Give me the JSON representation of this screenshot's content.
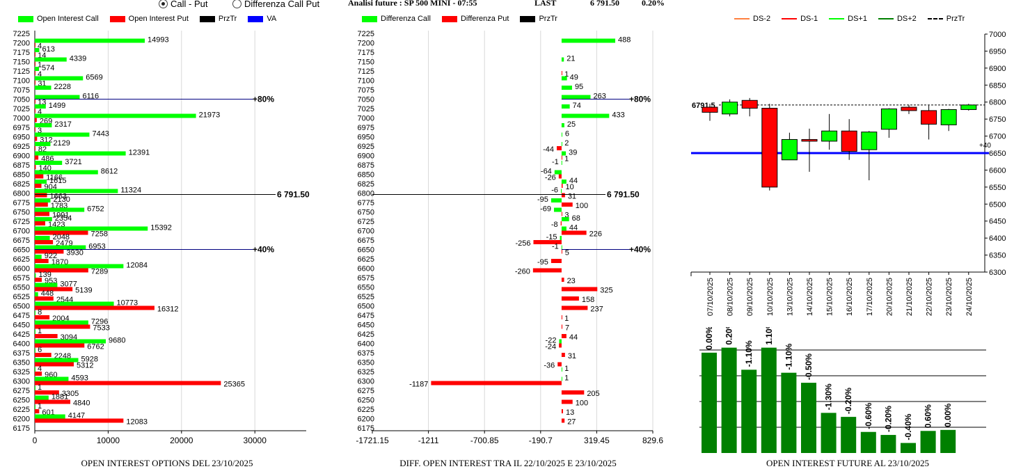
{
  "topbar": {
    "radio_options": [
      {
        "label": "Call - Put",
        "selected": true
      },
      {
        "label": "Differenza Call Put",
        "selected": false
      }
    ],
    "future_label": "Analisi future : SP 500 MINI - 07:55",
    "last_label": "LAST",
    "last_value": "6 791.50",
    "last_change": "0.20%"
  },
  "chart_data": [
    {
      "type": "bar",
      "id": "open-interest-options",
      "title": "OPEN INTEREST OPTIONS DEL 23/10/2025",
      "orientation": "horizontal",
      "legend": [
        "Open Interest Call",
        "Open Interest Put",
        "PrzTr",
        "VA"
      ],
      "legend_colors": [
        "#00ff00",
        "#ff0000",
        "#000000",
        "#0000ff"
      ],
      "strikes": [
        7225,
        7200,
        7175,
        7150,
        7125,
        7100,
        7075,
        7050,
        7025,
        7000,
        6975,
        6950,
        6925,
        6900,
        6875,
        6850,
        6825,
        6800,
        6775,
        6750,
        6725,
        6700,
        6675,
        6650,
        6625,
        6600,
        6575,
        6550,
        6525,
        6500,
        6475,
        6450,
        6425,
        6400,
        6375,
        6350,
        6325,
        6300,
        6275,
        6250,
        6225,
        6200,
        6175
      ],
      "series": [
        {
          "name": "Open Interest Call",
          "values": [
            0,
            14993,
            613,
            4339,
            574,
            6569,
            2228,
            6116,
            1499,
            21973,
            2317,
            7443,
            2129,
            12391,
            3721,
            8612,
            1615,
            11324,
            2130,
            6752,
            2354,
            15392,
            2048,
            6953,
            922,
            12084,
            139,
            3077,
            448,
            10773,
            8,
            7296,
            1,
            9680,
            6,
            5928,
            4,
            4593,
            1,
            1881,
            1,
            4147,
            0
          ]
        },
        {
          "name": "Open Interest Put",
          "values": [
            0,
            4,
            14,
            1,
            4,
            31,
            0,
            13,
            4,
            269,
            3,
            312,
            82,
            486,
            140,
            1166,
            904,
            1663,
            1783,
            1991,
            1423,
            7258,
            2479,
            3930,
            1870,
            7289,
            953,
            5139,
            2544,
            16312,
            2004,
            7533,
            3094,
            6762,
            2248,
            5312,
            960,
            25365,
            3305,
            4840,
            601,
            12083,
            0
          ]
        }
      ],
      "x_ticks": [
        "0",
        "10000",
        "20000",
        "30000"
      ],
      "xlim": [
        0,
        37000
      ],
      "markers": [
        {
          "label": "80%",
          "strike": 7050,
          "color": "#000080"
        },
        {
          "label": "6 791.50",
          "strike": 6800,
          "color": "#000000"
        },
        {
          "label": "40%",
          "strike": 6650,
          "color": "#000080"
        }
      ]
    },
    {
      "type": "bar",
      "id": "diff-open-interest",
      "title": "DIFF. OPEN INTEREST TRA IL 22/10/2025 E 23/10/2025",
      "orientation": "horizontal",
      "legend": [
        "Differenza Call",
        "Differenza Put",
        "PrzTr"
      ],
      "legend_colors": [
        "#00ff00",
        "#ff0000",
        "#000000"
      ],
      "strikes": [
        7225,
        7200,
        7175,
        7150,
        7125,
        7100,
        7075,
        7050,
        7025,
        7000,
        6975,
        6950,
        6925,
        6900,
        6875,
        6850,
        6825,
        6800,
        6775,
        6750,
        6725,
        6700,
        6675,
        6650,
        6625,
        6600,
        6575,
        6550,
        6525,
        6500,
        6475,
        6450,
        6425,
        6400,
        6375,
        6350,
        6325,
        6300,
        6275,
        6250,
        6225,
        6200,
        6175
      ],
      "series": [
        {
          "name": "Differenza Call",
          "values": [
            0,
            488,
            0,
            21,
            0,
            49,
            95,
            263,
            74,
            433,
            25,
            6,
            2,
            39,
            -1,
            -64,
            44,
            -6,
            -95,
            -69,
            68,
            44,
            -15,
            -1,
            0,
            0,
            0,
            0,
            0,
            0,
            0,
            0,
            0,
            -22,
            0,
            0,
            1,
            1,
            0,
            0,
            0,
            0,
            0
          ]
        },
        {
          "name": "Differenza Put",
          "values": [
            0,
            0,
            0,
            0,
            1,
            0,
            0,
            0,
            0,
            0,
            0,
            0,
            -44,
            1,
            0,
            -26,
            10,
            31,
            100,
            3,
            -8,
            226,
            -256,
            5,
            -95,
            -260,
            23,
            325,
            158,
            237,
            1,
            7,
            44,
            -24,
            31,
            -36,
            0,
            -1187,
            205,
            100,
            13,
            27,
            0
          ]
        }
      ],
      "x_ticks": [
        "-1721.15",
        "-1211",
        "-700.85",
        "-190.7",
        "319.45",
        "829.6"
      ],
      "xlim": [
        -1721.15,
        829.6
      ],
      "markers": [
        {
          "label": "80%",
          "strike": 7050,
          "color": "#000080"
        },
        {
          "label": "6 791.50",
          "strike": 6800,
          "color": "#000000"
        },
        {
          "label": "40%",
          "strike": 6650,
          "color": "#000080"
        }
      ]
    },
    {
      "type": "candlestick",
      "id": "future-price",
      "legend": [
        "DS-2",
        "DS-1",
        "DS+1",
        "DS+2",
        "PrzTr"
      ],
      "legend_colors": [
        "#ff8040",
        "#ff0000",
        "#00ff00",
        "#008000",
        "#000000"
      ],
      "categories": [
        "07/10/2025",
        "08/10/2025",
        "09/10/2025",
        "10/10/2025",
        "13/10/2025",
        "14/10/2025",
        "15/10/2025",
        "16/10/2025",
        "17/10/2025",
        "20/10/2025",
        "21/10/2025",
        "22/10/2025",
        "23/10/2025",
        "24/10/2025"
      ],
      "ohlc": [
        [
          6785,
          6795,
          6745,
          6770
        ],
        [
          6765,
          6808,
          6758,
          6800
        ],
        [
          6805,
          6812,
          6758,
          6782
        ],
        [
          6782,
          6795,
          6540,
          6550
        ],
        [
          6630,
          6710,
          6630,
          6690
        ],
        [
          6690,
          6722,
          6595,
          6685
        ],
        [
          6685,
          6765,
          6660,
          6715
        ],
        [
          6715,
          6750,
          6630,
          6655
        ],
        [
          6660,
          6715,
          6570,
          6712
        ],
        [
          6720,
          6782,
          6695,
          6780
        ],
        [
          6785,
          6792,
          6765,
          6775
        ],
        [
          6775,
          6790,
          6690,
          6735
        ],
        [
          6733,
          6780,
          6715,
          6778
        ],
        [
          6778,
          6795,
          6775,
          6791.5
        ]
      ],
      "ylim": [
        6300,
        7000
      ],
      "y_ticks": [
        7000,
        6950,
        6900,
        6850,
        6800,
        6750,
        6700,
        6650,
        6600,
        6550,
        6500,
        6450,
        6400,
        6350,
        6300
      ],
      "price_line": {
        "label": "6791.5",
        "value": 6791.5
      },
      "va_line": {
        "value": 6650,
        "label": "+40"
      }
    },
    {
      "type": "bar",
      "id": "open-interest-future",
      "title": "OPEN INTEREST FUTURE AL 23/10/2025",
      "categories": [
        "07/10/2025",
        "08/10/2025",
        "09/10/2025",
        "10/10/2025",
        "13/10/2025",
        "14/10/2025",
        "15/10/2025",
        "16/10/2025",
        "17/10/2025",
        "20/10/2025",
        "21/10/2025",
        "22/10/2025",
        "23/10/2025"
      ],
      "values": [
        100,
        105,
        83,
        105,
        80,
        70,
        40,
        36,
        21,
        18,
        10,
        22,
        23
      ],
      "data_labels": [
        "0.00%",
        "0.20%",
        "-1.10%",
        "1.10%",
        "-1.10%",
        "-0.50%",
        "-1.30%",
        "-0.20%",
        "-0.60%",
        "-0.20%",
        "-0.40%",
        "0.60%",
        "0.00%"
      ],
      "color": "#008000",
      "ylim": [
        0,
        120
      ]
    }
  ]
}
